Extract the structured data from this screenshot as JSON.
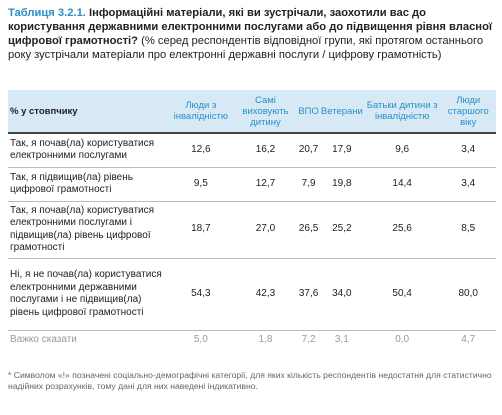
{
  "header": {
    "label": "Таблиця 3.2.1.",
    "question": "Інформаційні матеріали, які ви зустрічали, заохотили вас до користування державними електронними послугами або до підвищення рівня власної цифрової грамотності?",
    "note": "(% серед респондентів відповідної групи, які протягом останнього року зустрічали матеріали про електронні державні послуги / цифрову грамотність)"
  },
  "table": {
    "columns": [
      "% у стовпчику",
      "Люди з інвалідністю",
      "Самі виховують дитину",
      "ВПО",
      "Ветерани",
      "Батьки дитини з інвалідністю",
      "Люди старшого віку"
    ],
    "rows": [
      [
        "Так, я почав(ла) користуватися електронними послугами",
        "12,6",
        "16,2",
        "20,7",
        "17,9",
        "9,6",
        "3,4"
      ],
      [
        "Так, я підвищив(ла) рівень цифрової грамотності",
        "9,5",
        "12,7",
        "7,9",
        "19,8",
        "14,4",
        "3,4"
      ],
      [
        "Так, я почав(ла) користуватися електронними послугами і підвищив(ла) рівень цифрової грамотності",
        "18,7",
        "27,0",
        "26,5",
        "25,2",
        "25,6",
        "8,5"
      ],
      [
        "Ні, я не почав(ла) користуватися електронними державними послугами і не підвищив(ла) рівень цифрової грамотності",
        "54,3",
        "42,3",
        "37,6",
        "34,0",
        "50,4",
        "80,0"
      ],
      [
        "Важко сказати",
        "5,0",
        "1,8",
        "7,2",
        "3,1",
        "0,0",
        "4,7"
      ]
    ]
  },
  "footnote": "* Символом «!» позначені соціально-демографічні категорії, для яких кількість респондентів недостатня для статистично надійних розрахунків, тому дані для них наведені індикативно."
}
